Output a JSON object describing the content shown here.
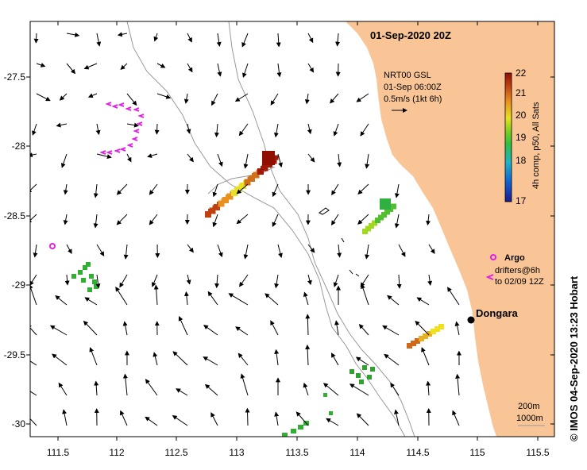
{
  "title": "01-Sep-2020 20Z",
  "legend": {
    "product": "NRT00 GSL",
    "time": "01-Sep 06:00Z",
    "scale": "0.5m/s (1kt 6h)"
  },
  "colorbar": {
    "label": "4h comp, p50, All Sats",
    "ticks": [
      "17",
      "18",
      "19",
      "20",
      "21",
      "22"
    ],
    "colors": [
      "#1a1a8c",
      "#1060d0",
      "#20b0c8",
      "#30c040",
      "#80d020",
      "#e8e020",
      "#e89020",
      "#c04010",
      "#901000"
    ]
  },
  "argo": {
    "label": "Argo",
    "color": "#e020e0"
  },
  "drifters": {
    "line1": "drifters@6h",
    "line2": "to 02/09 12Z"
  },
  "town": {
    "name": "Dongara"
  },
  "isobaths": {
    "a": "200m",
    "b": "1000m"
  },
  "credit": "©  IMOS 04-Sep-2020 13:23 Hobart",
  "axes": {
    "x_ticks": [
      "111.5",
      "112",
      "112.5",
      "113",
      "113.5",
      "114",
      "114.5",
      "115",
      "115.5"
    ],
    "y_ticks": [
      "-27.5",
      "-28",
      "-28.5",
      "-29",
      "-29.5",
      "-30"
    ]
  },
  "land_color": "#f9c596"
}
